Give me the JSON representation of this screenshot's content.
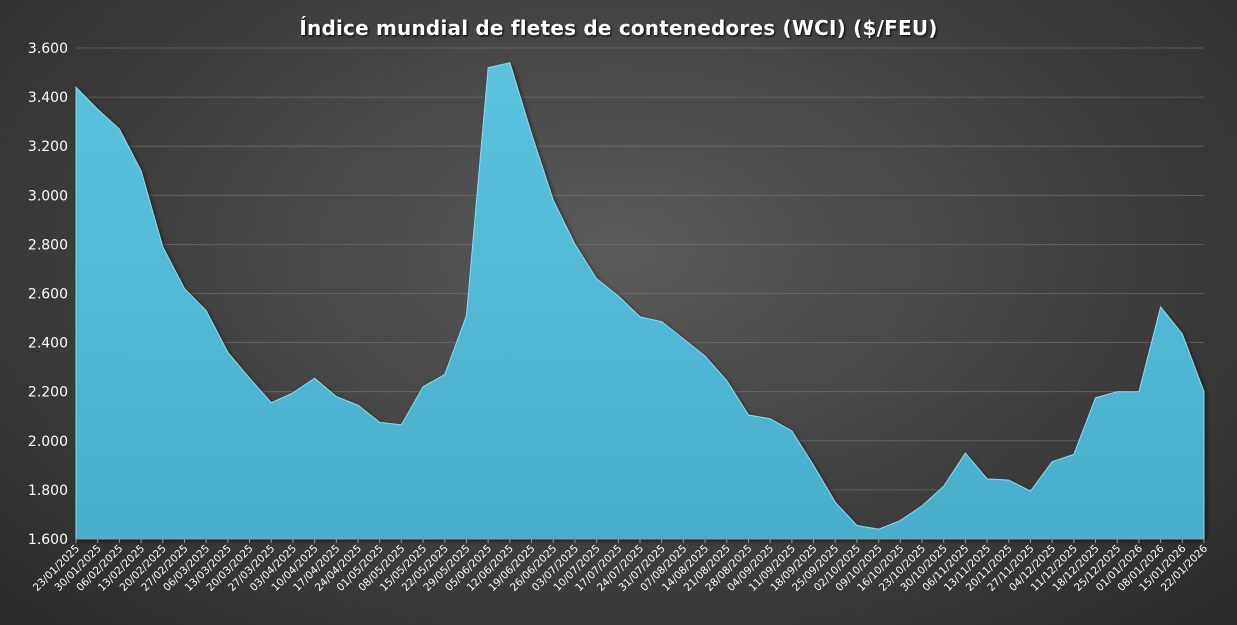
{
  "chart_data": {
    "type": "area",
    "title": "Índice mundial de fletes de contenedores (WCI) ($/FEU)",
    "xlabel": "",
    "ylabel": "",
    "ylim": [
      1600,
      3600
    ],
    "yticks": [
      1600,
      1800,
      2000,
      2200,
      2400,
      2600,
      2800,
      3000,
      3200,
      3400,
      3600
    ],
    "ytick_labels": [
      "1.600",
      "1.800",
      "2.000",
      "2.200",
      "2.400",
      "2.600",
      "2.800",
      "3.000",
      "3.200",
      "3.400",
      "3.600"
    ],
    "grid": true,
    "legend": "none",
    "fill_color": "#4FB8D6",
    "categories": [
      "23/01/2025",
      "30/01/2025",
      "06/02/2025",
      "13/02/2025",
      "20/02/2025",
      "27/02/2025",
      "06/03/2025",
      "13/03/2025",
      "20/03/2025",
      "27/03/2025",
      "03/04/2025",
      "10/04/2025",
      "17/04/2025",
      "24/04/2025",
      "01/05/2025",
      "08/05/2025",
      "15/05/2025",
      "22/05/2025",
      "29/05/2025",
      "05/06/2025",
      "12/06/2025",
      "19/06/2025",
      "26/06/2025",
      "03/07/2025",
      "10/07/2025",
      "17/07/2025",
      "24/07/2025",
      "31/07/2025",
      "07/08/2025",
      "14/08/2025",
      "21/08/2025",
      "28/08/2025",
      "04/09/2025",
      "11/09/2025",
      "18/09/2025",
      "25/09/2025",
      "02/10/2025",
      "09/10/2025",
      "16/10/2025",
      "23/10/2025",
      "30/10/2025",
      "06/11/2025",
      "13/11/2025",
      "20/11/2025",
      "27/11/2025",
      "04/12/2025",
      "11/12/2025",
      "18/12/2025",
      "25/12/2025",
      "01/01/2026",
      "08/01/2026",
      "15/01/2026",
      "22/01/2026"
    ],
    "values": [
      3440,
      3350,
      3270,
      3100,
      2790,
      2620,
      2530,
      2360,
      2255,
      2155,
      2195,
      2255,
      2180,
      2145,
      2075,
      2065,
      2220,
      2270,
      2510,
      3520,
      3540,
      3250,
      2980,
      2800,
      2660,
      2590,
      2505,
      2485,
      2415,
      2345,
      2245,
      2105,
      2090,
      2040,
      1900,
      1750,
      1655,
      1640,
      1675,
      1735,
      1815,
      1950,
      1845,
      1840,
      1795,
      1915,
      1945,
      2175,
      2200,
      2200,
      2545,
      2435,
      2200
    ]
  }
}
